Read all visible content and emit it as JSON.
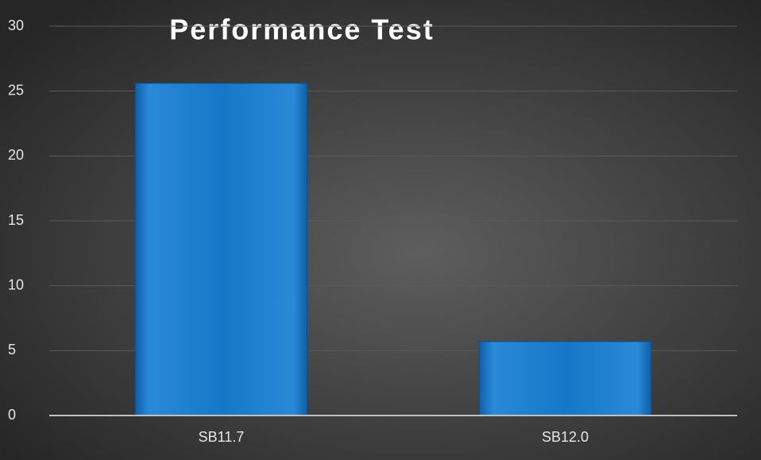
{
  "chart_data": {
    "type": "bar",
    "title": "Performance Test",
    "categories": [
      "SB11.7",
      "SB12.0"
    ],
    "values": [
      25.6,
      5.7
    ],
    "color": "#1a7fd0",
    "ylim": [
      0,
      30
    ],
    "yticks": [
      0,
      5,
      10,
      15,
      20,
      25,
      30
    ],
    "grid": true
  }
}
